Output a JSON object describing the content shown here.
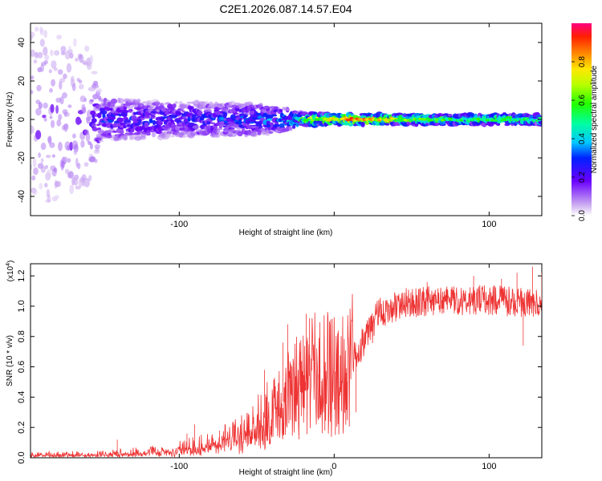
{
  "title": "C2E1.2026.087.14.57.E04",
  "chart_data": [
    {
      "type": "heatmap",
      "xlabel": "Height of straight line (km)",
      "ylabel": "Frequency (Hz)",
      "xlim": [
        -196,
        134
      ],
      "ylim": [
        -50,
        50
      ],
      "xticks": [
        -100,
        0,
        100
      ],
      "xtick_labels": [
        "-100",
        "",
        "100"
      ],
      "yticks": [
        -40,
        -20,
        0,
        20,
        40
      ],
      "ytick_labels": [
        "-40",
        "-20",
        "0",
        "20",
        "40"
      ],
      "colorbar": {
        "label": "Normalized spectral amplitude",
        "range": [
          0.0,
          1.0
        ],
        "ticks": [
          0.0,
          0.2,
          0.4,
          0.6,
          0.8
        ],
        "tick_labels": [
          "0.0",
          "0.2",
          "0.4",
          "0.6",
          "0.8"
        ]
      },
      "profile": [
        {
          "x": -196,
          "half_width_hz": 50,
          "amplitude": 0.12
        },
        {
          "x": -160,
          "half_width_hz": 40,
          "amplitude": 0.15
        },
        {
          "x": -150,
          "half_width_hz": 12,
          "amplitude": 0.25
        },
        {
          "x": -100,
          "half_width_hz": 10,
          "amplitude": 0.25
        },
        {
          "x": -50,
          "half_width_hz": 9,
          "amplitude": 0.28
        },
        {
          "x": -30,
          "half_width_hz": 6,
          "amplitude": 0.38
        },
        {
          "x": -20,
          "half_width_hz": 4,
          "amplitude": 0.55
        },
        {
          "x": 0,
          "half_width_hz": 3,
          "amplitude": 0.75
        },
        {
          "x": 15,
          "half_width_hz": 3,
          "amplitude": 0.9
        },
        {
          "x": 50,
          "half_width_hz": 3,
          "amplitude": 0.6
        },
        {
          "x": 134,
          "half_width_hz": 3,
          "amplitude": 0.5
        }
      ]
    },
    {
      "type": "line",
      "xlabel": "Height of straight line (km)",
      "ylabel": "SNR (10 * v/v)",
      "y_multiplier": "(x10",
      "y_multiplier_exp": "4",
      "y_multiplier_close": ")",
      "xlim": [
        -196,
        134
      ],
      "ylim": [
        0,
        1.28
      ],
      "xticks": [
        -100,
        0,
        100
      ],
      "xtick_labels": [
        "-100",
        "0",
        "100"
      ],
      "yticks": [
        0.0,
        0.2,
        0.4,
        0.6,
        0.8,
        1.0,
        1.2
      ],
      "ytick_labels": [
        "0.0",
        "0.2",
        "0.4",
        "0.6",
        "0.8",
        "1.0",
        "1.2"
      ],
      "color": "#ee3333",
      "series": [
        {
          "name": "SNR",
          "trend": [
            {
              "x": -196,
              "y": 0.02
            },
            {
              "x": -150,
              "y": 0.025
            },
            {
              "x": -120,
              "y": 0.04
            },
            {
              "x": -100,
              "y": 0.06
            },
            {
              "x": -80,
              "y": 0.09
            },
            {
              "x": -60,
              "y": 0.15
            },
            {
              "x": -40,
              "y": 0.3
            },
            {
              "x": -25,
              "y": 0.45
            },
            {
              "x": -15,
              "y": 0.55
            },
            {
              "x": 0,
              "y": 0.55
            },
            {
              "x": 10,
              "y": 0.6
            },
            {
              "x": 20,
              "y": 0.8
            },
            {
              "x": 30,
              "y": 0.95
            },
            {
              "x": 45,
              "y": 1.02
            },
            {
              "x": 70,
              "y": 1.04
            },
            {
              "x": 100,
              "y": 1.04
            },
            {
              "x": 134,
              "y": 1.02
            }
          ],
          "spikes": [
            {
              "x": -140,
              "y": 0.12
            },
            {
              "x": -95,
              "y": 0.16
            },
            {
              "x": -90,
              "y": 0.22
            },
            {
              "x": -74,
              "y": 0.18
            },
            {
              "x": -45,
              "y": 0.58
            },
            {
              "x": -33,
              "y": 0.76
            },
            {
              "x": -30,
              "y": 0.88
            },
            {
              "x": -22,
              "y": 0.7
            },
            {
              "x": -18,
              "y": 0.95
            },
            {
              "x": -16,
              "y": 0.92
            },
            {
              "x": -10,
              "y": 0.52
            },
            {
              "x": 8,
              "y": 0.4
            },
            {
              "x": 14,
              "y": 0.3
            },
            {
              "x": 60,
              "y": 1.16
            },
            {
              "x": 90,
              "y": 1.2
            },
            {
              "x": 108,
              "y": 1.18
            },
            {
              "x": 118,
              "y": 1.22
            },
            {
              "x": 128,
              "y": 1.26
            },
            {
              "x": 134,
              "y": 1.22
            },
            {
              "x": 122,
              "y": 0.74
            }
          ]
        }
      ]
    }
  ]
}
